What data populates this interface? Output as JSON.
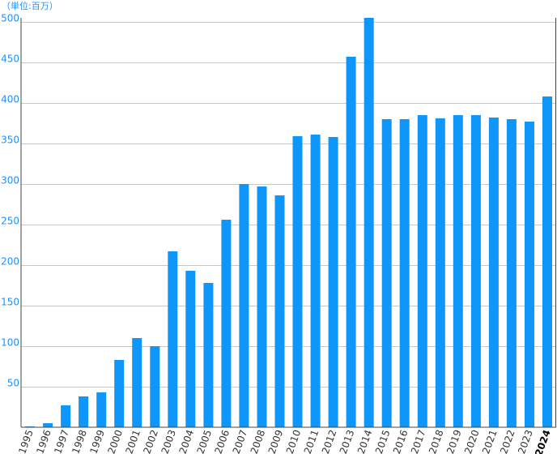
{
  "chart_data": {
    "type": "bar",
    "unit_label": "（単位:百万）",
    "categories": [
      "1995",
      "1996",
      "1997",
      "1998",
      "1999",
      "2000",
      "2001",
      "2002",
      "2003",
      "2004",
      "2005",
      "2006",
      "2007",
      "2008",
      "2009",
      "2010",
      "2011",
      "2012",
      "2013",
      "2014",
      "2015",
      "2016",
      "2017",
      "2018",
      "2019",
      "2020",
      "2021",
      "2022",
      "2023",
      "2024"
    ],
    "values": [
      1,
      5,
      27,
      38,
      43,
      83,
      110,
      100,
      217,
      193,
      178,
      256,
      300,
      297,
      286,
      359,
      361,
      358,
      457,
      505,
      380,
      380,
      385,
      381,
      385,
      385,
      382,
      380,
      377,
      408
    ],
    "yticks": [
      50,
      100,
      150,
      200,
      250,
      300,
      350,
      400,
      450,
      500
    ],
    "ylim": [
      0,
      505
    ],
    "grid": true,
    "highlight_last_category": true,
    "colors": {
      "bar": "#0f96fa",
      "tick_label": "#1e90ff",
      "grid": "#c8c8c8"
    }
  }
}
